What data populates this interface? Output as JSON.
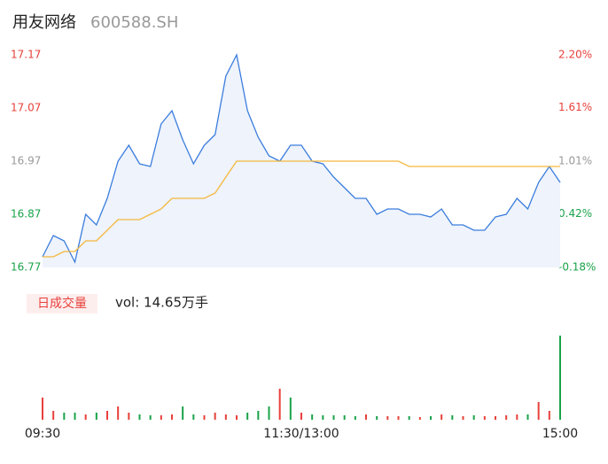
{
  "chart_data": [
    {
      "type": "line",
      "title": "用友网络",
      "subtitle": "600588.SH",
      "x": [
        0,
        5,
        10,
        15,
        20,
        25,
        30,
        35,
        40,
        45,
        50,
        55,
        60,
        65,
        70,
        75,
        80,
        85,
        90,
        95,
        100,
        105,
        110,
        115,
        120,
        125,
        130,
        135,
        140,
        145,
        150,
        155,
        160,
        165,
        170,
        175,
        180,
        185,
        190,
        195,
        200,
        205,
        210,
        215,
        220,
        225,
        230,
        235,
        240
      ],
      "xlim": [
        0,
        240
      ],
      "series": [
        {
          "name": "price",
          "color": "#3b7ddd",
          "values": [
            16.79,
            16.83,
            16.82,
            16.78,
            16.87,
            16.85,
            16.9,
            16.97,
            17.0,
            16.965,
            16.96,
            17.04,
            17.065,
            17.01,
            16.965,
            17.0,
            17.02,
            17.13,
            17.17,
            17.065,
            17.015,
            16.98,
            16.97,
            17.0,
            17.0,
            16.97,
            16.965,
            16.94,
            16.92,
            16.9,
            16.9,
            16.87,
            16.88,
            16.88,
            16.87,
            16.87,
            16.865,
            16.88,
            16.85,
            16.85,
            16.84,
            16.84,
            16.865,
            16.87,
            16.9,
            16.88,
            16.93,
            16.96,
            16.93
          ]
        },
        {
          "name": "average",
          "color": "#f5b83d",
          "values": [
            16.79,
            16.79,
            16.8,
            16.8,
            16.82,
            16.82,
            16.84,
            16.86,
            16.86,
            16.86,
            16.87,
            16.88,
            16.9,
            16.9,
            16.9,
            16.9,
            16.91,
            16.94,
            16.97,
            16.97,
            16.97,
            16.97,
            16.97,
            16.97,
            16.97,
            16.97,
            16.97,
            16.97,
            16.97,
            16.97,
            16.97,
            16.97,
            16.97,
            16.97,
            16.96,
            16.96,
            16.96,
            16.96,
            16.96,
            16.96,
            16.96,
            16.96,
            16.96,
            16.96,
            16.96,
            16.96,
            16.96,
            16.96,
            16.96
          ]
        }
      ],
      "ylim": [
        16.77,
        17.17
      ],
      "yticks": [
        17.17,
        17.07,
        16.97,
        16.87,
        16.77
      ],
      "y2lim": [
        -0.18,
        2.2
      ],
      "y2ticks": [
        {
          "value": 2.2,
          "label": "2.20%"
        },
        {
          "value": 1.61,
          "label": "1.61%"
        },
        {
          "value": 1.01,
          "label": "1.01%"
        },
        {
          "value": 0.42,
          "label": "0.42%"
        },
        {
          "value": -0.18,
          "label": "-0.18%"
        }
      ],
      "tick_colors": {
        "up": "#e8403a",
        "flat": "#999999",
        "down": "#1aa34a"
      },
      "area_color": "#eef3fc"
    },
    {
      "type": "bar",
      "title": "日成交量",
      "subtitle": "vol: 14.65万手",
      "x": [
        0,
        5,
        10,
        15,
        20,
        25,
        30,
        35,
        40,
        45,
        50,
        55,
        60,
        65,
        70,
        75,
        80,
        85,
        90,
        95,
        100,
        105,
        110,
        115,
        120,
        125,
        130,
        135,
        140,
        145,
        150,
        155,
        160,
        165,
        170,
        175,
        180,
        185,
        190,
        195,
        200,
        205,
        210,
        215,
        220,
        225,
        230,
        235,
        240
      ],
      "xlim": [
        0,
        240
      ],
      "xticks": [
        {
          "value": 0,
          "label": "09:30"
        },
        {
          "value": 120,
          "label": "11:30/13:00"
        },
        {
          "value": 240,
          "label": "15:00"
        }
      ],
      "values": [
        25,
        10,
        8,
        8,
        6,
        8,
        10,
        15,
        8,
        6,
        5,
        5,
        6,
        15,
        6,
        5,
        8,
        6,
        5,
        8,
        10,
        15,
        35,
        25,
        8,
        6,
        5,
        5,
        5,
        4,
        6,
        4,
        4,
        4,
        4,
        3,
        4,
        6,
        5,
        4,
        5,
        4,
        4,
        5,
        6,
        6,
        20,
        10,
        95
      ],
      "colors": [
        "#e8403a",
        "#e8403a",
        "#1aa34a",
        "#1aa34a",
        "#e8403a",
        "#1aa34a",
        "#e8403a",
        "#e8403a",
        "#e8403a",
        "#1aa34a",
        "#1aa34a",
        "#e8403a",
        "#e8403a",
        "#1aa34a",
        "#1aa34a",
        "#e8403a",
        "#e8403a",
        "#e8403a",
        "#e8403a",
        "#1aa34a",
        "#1aa34a",
        "#1aa34a",
        "#e8403a",
        "#1aa34a",
        "#e8403a",
        "#1aa34a",
        "#1aa34a",
        "#1aa34a",
        "#1aa34a",
        "#1aa34a",
        "#e8403a",
        "#1aa34a",
        "#e8403a",
        "#e8403a",
        "#1aa34a",
        "#e8403a",
        "#1aa34a",
        "#e8403a",
        "#1aa34a",
        "#e8403a",
        "#1aa34a",
        "#e8403a",
        "#e8403a",
        "#e8403a",
        "#e8403a",
        "#1aa34a",
        "#e8403a",
        "#e8403a",
        "#1aa34a"
      ],
      "ylim": [
        0,
        100
      ]
    }
  ]
}
